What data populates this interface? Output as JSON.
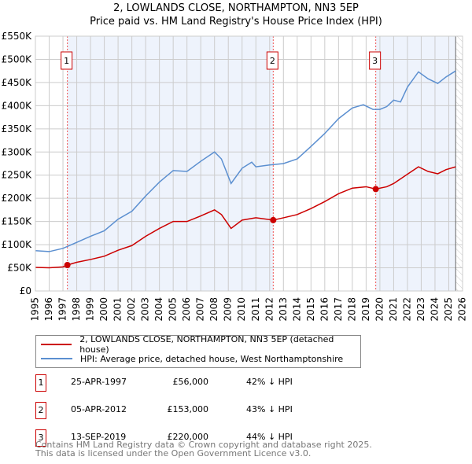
{
  "chart_data": {
    "type": "line",
    "title": "2, LOWLANDS CLOSE, NORTHAMPTON, NN3 5EP",
    "subtitle": "Price paid vs. HM Land Registry's House Price Index (HPI)",
    "xlim": [
      1995,
      2026
    ],
    "ylim": [
      0,
      550000
    ],
    "y_ticks": [
      0,
      50000,
      100000,
      150000,
      200000,
      250000,
      300000,
      350000,
      400000,
      450000,
      500000,
      550000
    ],
    "y_tick_labels": [
      "£0",
      "£50K",
      "£100K",
      "£150K",
      "£200K",
      "£250K",
      "£300K",
      "£350K",
      "£400K",
      "£450K",
      "£500K",
      "£550K"
    ],
    "x_ticks": [
      "1995",
      "1996",
      "1997",
      "1998",
      "1999",
      "2000",
      "2001",
      "2002",
      "2003",
      "2004",
      "2005",
      "2006",
      "2007",
      "2008",
      "2009",
      "2010",
      "2011",
      "2012",
      "2013",
      "2014",
      "2015",
      "2016",
      "2017",
      "2018",
      "2019",
      "2020",
      "2021",
      "2022",
      "2023",
      "2024",
      "2025",
      "2026"
    ],
    "grid": true,
    "series": [
      {
        "name": "2, LOWLANDS CLOSE, NORTHAMPTON, NN3 5EP (detached house)",
        "color": "#cc0000",
        "x": [
          1995,
          1996,
          1997,
          1997.32,
          1998,
          1999,
          2000,
          2001,
          2002,
          2003,
          2004,
          2005,
          2006,
          2007,
          2008,
          2008.5,
          2009.2,
          2010,
          2011,
          2012.26,
          2013,
          2014,
          2015,
          2016,
          2017,
          2018,
          2019,
          2019.7,
          2020.5,
          2021,
          2022,
          2022.8,
          2023.5,
          2024.2,
          2024.8,
          2025.5
        ],
        "y": [
          51000,
          50000,
          52000,
          56000,
          62000,
          68000,
          75000,
          88000,
          98000,
          118000,
          135000,
          150000,
          150000,
          162000,
          175000,
          165000,
          135000,
          153000,
          158000,
          153000,
          158000,
          165000,
          178000,
          193000,
          210000,
          222000,
          225000,
          220000,
          225000,
          232000,
          252000,
          268000,
          258000,
          253000,
          262000,
          268000
        ]
      },
      {
        "name": "HPI: Average price, detached house, West Northamptonshire",
        "color": "#5b8fd0",
        "x": [
          1995,
          1996,
          1997,
          1998,
          1999,
          2000,
          2001,
          2002,
          2003,
          2004,
          2005,
          2006,
          2007,
          2008,
          2008.5,
          2009.2,
          2010,
          2010.7,
          2011,
          2012,
          2013,
          2014,
          2015,
          2016,
          2017,
          2018,
          2018.8,
          2019.5,
          2020,
          2020.5,
          2021,
          2021.5,
          2022,
          2022.8,
          2023.5,
          2024.2,
          2024.8,
          2025.5
        ],
        "y": [
          87000,
          85000,
          92000,
          105000,
          118000,
          130000,
          155000,
          172000,
          205000,
          235000,
          260000,
          258000,
          280000,
          300000,
          285000,
          232000,
          265000,
          278000,
          268000,
          272000,
          275000,
          285000,
          312000,
          340000,
          372000,
          395000,
          402000,
          392000,
          392000,
          398000,
          412000,
          408000,
          440000,
          473000,
          458000,
          448000,
          462000,
          475000
        ]
      }
    ],
    "sales": [
      {
        "label": "1",
        "x": 1997.32,
        "y": 56000
      },
      {
        "label": "2",
        "x": 2012.26,
        "y": 153000
      },
      {
        "label": "3",
        "x": 2019.7,
        "y": 220000
      }
    ],
    "shaded_ranges": [
      [
        1997.32,
        2012.26
      ],
      [
        2019.7,
        2025.5
      ]
    ],
    "hatched_from": 2025.5
  },
  "legend": {
    "property": "2, LOWLANDS CLOSE, NORTHAMPTON, NN3 5EP (detached house)",
    "hpi": "HPI: Average price, detached house, West Northamptonshire"
  },
  "transactions": [
    {
      "num": "1",
      "date": "25-APR-1997",
      "price": "£56,000",
      "diff": "42% ↓ HPI"
    },
    {
      "num": "2",
      "date": "05-APR-2012",
      "price": "£153,000",
      "diff": "43% ↓ HPI"
    },
    {
      "num": "3",
      "date": "13-SEP-2019",
      "price": "£220,000",
      "diff": "44% ↓ HPI"
    }
  ],
  "footer": {
    "line1": "Contains HM Land Registry data © Crown copyright and database right 2025.",
    "line2": "This data is licensed under the Open Government Licence v3.0."
  }
}
